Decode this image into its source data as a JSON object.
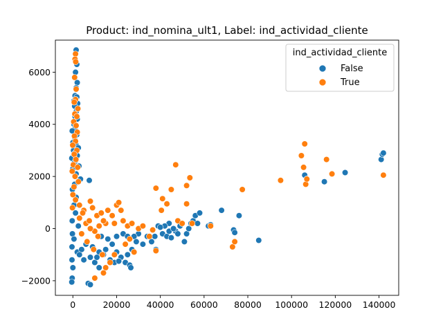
{
  "chart_data": {
    "type": "scatter",
    "title": "Product: ind_nomina_ult1, Label: ind_actividad_cliente",
    "xlabel": "",
    "ylabel": "",
    "xlim": [
      -8000,
      149000
    ],
    "ylim": [
      -2560,
      7230
    ],
    "x_ticks": [
      0,
      20000,
      40000,
      60000,
      80000,
      100000,
      120000,
      140000
    ],
    "x_tick_labels": [
      "0",
      "20000",
      "40000",
      "60000",
      "80000",
      "100000",
      "120000",
      "140000"
    ],
    "y_ticks": [
      -2000,
      0,
      2000,
      4000,
      6000
    ],
    "y_tick_labels": [
      "−2000",
      "0",
      "2000",
      "4000",
      "6000"
    ],
    "grid": false,
    "legend": {
      "title": "ind_actividad_cliente",
      "position": "top-right",
      "entries": [
        {
          "label": "False",
          "color": "#1f77b4"
        },
        {
          "label": "True",
          "color": "#ff7f0e"
        }
      ]
    },
    "series": [
      {
        "name": "False",
        "color": "#1f77b4",
        "points": [
          [
            1500,
            6850
          ],
          [
            1800,
            6300
          ],
          [
            1200,
            6000
          ],
          [
            2000,
            5600
          ],
          [
            1500,
            5400
          ],
          [
            1000,
            5100
          ],
          [
            1800,
            5050
          ],
          [
            1300,
            4950
          ],
          [
            500,
            4900
          ],
          [
            2200,
            4800
          ],
          [
            800,
            4700
          ],
          [
            1600,
            4500
          ],
          [
            1000,
            4300
          ],
          [
            2000,
            4200
          ],
          [
            500,
            4000
          ],
          [
            1200,
            3900
          ],
          [
            -300,
            3750
          ],
          [
            1800,
            3600
          ],
          [
            800,
            3500
          ],
          [
            0,
            3300
          ],
          [
            1500,
            3200
          ],
          [
            2500,
            3100
          ],
          [
            300,
            3000
          ],
          [
            1000,
            2900
          ],
          [
            2000,
            2800
          ],
          [
            -500,
            2700
          ],
          [
            1200,
            2600
          ],
          [
            500,
            2500
          ],
          [
            2800,
            2400
          ],
          [
            0,
            2300
          ],
          [
            1500,
            2100
          ],
          [
            3500,
            1900
          ],
          [
            7500,
            1850
          ],
          [
            800,
            1700
          ],
          [
            -200,
            1500
          ],
          [
            1500,
            1200
          ],
          [
            500,
            900
          ],
          [
            1200,
            600
          ],
          [
            -300,
            300
          ],
          [
            2500,
            100
          ],
          [
            -200,
            -200
          ],
          [
            500,
            -400
          ],
          [
            -400,
            -700
          ],
          [
            2000,
            -900
          ],
          [
            4000,
            -800
          ],
          [
            6000,
            -600
          ],
          [
            9000,
            -700
          ],
          [
            12000,
            -900
          ],
          [
            15000,
            -800
          ],
          [
            18000,
            -600
          ],
          [
            20000,
            -900
          ],
          [
            22000,
            -1100
          ],
          [
            24000,
            -1300
          ],
          [
            26000,
            -1400
          ],
          [
            26500,
            -1500
          ],
          [
            8000,
            -1100
          ],
          [
            10000,
            -1300
          ],
          [
            12000,
            -1500
          ],
          [
            5000,
            -1200
          ],
          [
            3000,
            -1000
          ],
          [
            7000,
            -2100
          ],
          [
            8000,
            -2150
          ],
          [
            -300,
            -1900
          ],
          [
            -500,
            -2050
          ],
          [
            0,
            -1500
          ],
          [
            -400,
            -1200
          ],
          [
            11000,
            -1100
          ],
          [
            14000,
            -1000
          ],
          [
            17000,
            -1200
          ],
          [
            19000,
            -1300
          ],
          [
            21000,
            -1250
          ],
          [
            25000,
            -1000
          ],
          [
            27000,
            -800
          ],
          [
            29000,
            -500
          ],
          [
            32000,
            -600
          ],
          [
            23000,
            -200
          ],
          [
            25000,
            -300
          ],
          [
            20000,
            -300
          ],
          [
            16000,
            -400
          ],
          [
            13000,
            -300
          ],
          [
            38000,
            -800
          ],
          [
            37500,
            -300
          ],
          [
            39000,
            100
          ],
          [
            41000,
            -200
          ],
          [
            43000,
            -300
          ],
          [
            44000,
            -100
          ],
          [
            44000,
            200
          ],
          [
            47000,
            -100
          ],
          [
            49000,
            100
          ],
          [
            51000,
            -500
          ],
          [
            52000,
            -200
          ],
          [
            53000,
            0
          ],
          [
            54000,
            200
          ],
          [
            55000,
            300
          ],
          [
            56000,
            500
          ],
          [
            58000,
            600
          ],
          [
            57000,
            200
          ],
          [
            62000,
            100
          ],
          [
            63000,
            150
          ],
          [
            68000,
            700
          ],
          [
            73500,
            -50
          ],
          [
            74000,
            -150
          ],
          [
            76000,
            500
          ],
          [
            85000,
            -450
          ],
          [
            106000,
            2050
          ],
          [
            107000,
            1900
          ],
          [
            115000,
            1800
          ],
          [
            124500,
            2150
          ],
          [
            141000,
            2650
          ],
          [
            141500,
            2850
          ],
          [
            142000,
            2900
          ],
          [
            36000,
            -500
          ],
          [
            34000,
            -300
          ],
          [
            30000,
            -200
          ],
          [
            28000,
            -300
          ],
          [
            45000,
            -350
          ],
          [
            48000,
            -200
          ],
          [
            46000,
            0
          ],
          [
            42000,
            100
          ],
          [
            40000,
            50
          ]
        ]
      },
      {
        "name": "True",
        "color": "#ff7f0e",
        "points": [
          [
            1200,
            6700
          ],
          [
            1000,
            6500
          ],
          [
            1300,
            6400
          ],
          [
            800,
            5800
          ],
          [
            1500,
            5350
          ],
          [
            1200,
            4950
          ],
          [
            600,
            4850
          ],
          [
            2300,
            4600
          ],
          [
            900,
            4400
          ],
          [
            1800,
            4300
          ],
          [
            400,
            4100
          ],
          [
            1500,
            3950
          ],
          [
            2000,
            3700
          ],
          [
            700,
            3550
          ],
          [
            1200,
            3350
          ],
          [
            -100,
            3200
          ],
          [
            1800,
            3000
          ],
          [
            600,
            2850
          ],
          [
            1400,
            2650
          ],
          [
            200,
            2450
          ],
          [
            2200,
            2350
          ],
          [
            -300,
            2200
          ],
          [
            1000,
            2000
          ],
          [
            2500,
            1800
          ],
          [
            500,
            1600
          ],
          [
            0,
            1300
          ],
          [
            1200,
            1100
          ],
          [
            -200,
            800
          ],
          [
            3000,
            900
          ],
          [
            5000,
            700
          ],
          [
            8000,
            1050
          ],
          [
            9000,
            800
          ],
          [
            11000,
            500
          ],
          [
            13000,
            600
          ],
          [
            16000,
            700
          ],
          [
            18000,
            500
          ],
          [
            20000,
            900
          ],
          [
            21000,
            1000
          ],
          [
            22000,
            700
          ],
          [
            23000,
            300
          ],
          [
            15000,
            200
          ],
          [
            12000,
            100
          ],
          [
            10000,
            -100
          ],
          [
            8000,
            0
          ],
          [
            6000,
            200
          ],
          [
            4000,
            -200
          ],
          [
            3000,
            400
          ],
          [
            6500,
            -500
          ],
          [
            9500,
            -800
          ],
          [
            13500,
            -1000
          ],
          [
            15000,
            -1500
          ],
          [
            10000,
            -1900
          ],
          [
            14000,
            -1700
          ],
          [
            17000,
            -1300
          ],
          [
            19000,
            -1000
          ],
          [
            24000,
            -600
          ],
          [
            26000,
            -400
          ],
          [
            28000,
            -900
          ],
          [
            30000,
            0
          ],
          [
            32000,
            100
          ],
          [
            35000,
            -300
          ],
          [
            36500,
            -50
          ],
          [
            38000,
            1550
          ],
          [
            38000,
            -850
          ],
          [
            40500,
            700
          ],
          [
            41000,
            1150
          ],
          [
            43000,
            950
          ],
          [
            45000,
            1500
          ],
          [
            47000,
            2450
          ],
          [
            48000,
            300
          ],
          [
            50000,
            200
          ],
          [
            52000,
            1650
          ],
          [
            52000,
            950
          ],
          [
            53500,
            1950
          ],
          [
            54500,
            200
          ],
          [
            63000,
            100
          ],
          [
            73000,
            -700
          ],
          [
            74000,
            -500
          ],
          [
            77500,
            1500
          ],
          [
            95000,
            1850
          ],
          [
            104500,
            2800
          ],
          [
            105500,
            2350
          ],
          [
            106000,
            3250
          ],
          [
            106500,
            1700
          ],
          [
            107000,
            1900
          ],
          [
            116000,
            2650
          ],
          [
            118500,
            2100
          ],
          [
            142000,
            2050
          ],
          [
            25000,
            100
          ],
          [
            27000,
            200
          ],
          [
            19000,
            200
          ],
          [
            14000,
            300
          ],
          [
            11500,
            -300
          ],
          [
            7500,
            300
          ],
          [
            4500,
            600
          ]
        ]
      }
    ]
  }
}
